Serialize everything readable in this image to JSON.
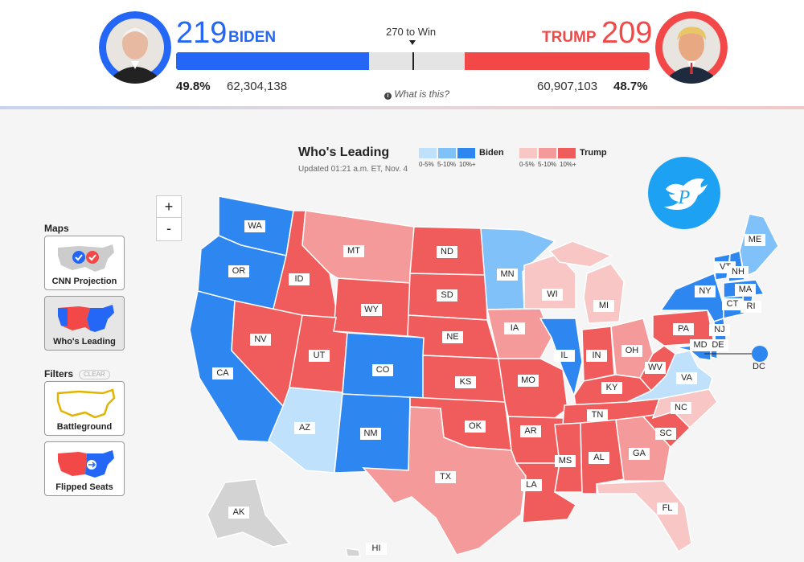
{
  "header": {
    "biden": {
      "electoral": "219",
      "name": "BIDEN",
      "pct": "49.8%",
      "votes": "62,304,138"
    },
    "trump": {
      "electoral": "209",
      "name": "TRUMP",
      "pct": "48.7%",
      "votes": "60,907,103"
    },
    "win_label": "270 to Win",
    "help_text": "What is this?",
    "help_icon": "info-icon",
    "colors": {
      "biden": "#2466f5",
      "trump": "#f24848",
      "neutral": "#e4e4e4"
    }
  },
  "zoom": {
    "in_label": "+",
    "out_label": "-"
  },
  "sidebar": {
    "maps_title": "Maps",
    "maps": [
      {
        "label": "CNN Projection",
        "icon": "us-map-checkmarks-icon"
      },
      {
        "label": "Who's Leading",
        "icon": "us-map-red-blue-icon"
      }
    ],
    "filters_title": "Filters",
    "clear_label": "CLEAR",
    "filters": [
      {
        "label": "Battleground",
        "icon": "us-outline-yellow-icon"
      },
      {
        "label": "Flipped Seats",
        "icon": "us-map-flip-icon"
      }
    ]
  },
  "legend": {
    "title": "Who's Leading",
    "updated": "Updated 01:21 a.m. ET, Nov. 4",
    "biden_label": "Biden",
    "trump_label": "Trump",
    "ranges": [
      "0-5%",
      "5-10%",
      "10%+"
    ],
    "biden_colors": [
      "#bfe1fb",
      "#7fc1f8",
      "#2e86f0"
    ],
    "trump_colors": [
      "#f9c6c6",
      "#f59a9a",
      "#f05c5c"
    ]
  },
  "watermark_icon": "twitter-bird-p-icon",
  "states": {
    "WA": "WA",
    "OR": "OR",
    "CA": "CA",
    "ID": "ID",
    "NV": "NV",
    "MT": "MT",
    "WY": "WY",
    "UT": "UT",
    "AZ": "AZ",
    "CO": "CO",
    "NM": "NM",
    "ND": "ND",
    "SD": "SD",
    "NE": "NE",
    "KS": "KS",
    "OK": "OK",
    "TX": "TX",
    "MN": "MN",
    "IA": "IA",
    "MO": "MO",
    "AR": "AR",
    "LA": "LA",
    "WI": "WI",
    "IL": "IL",
    "MS": "MS",
    "MI": "MI",
    "IN": "IN",
    "KY": "KY",
    "TN": "TN",
    "AL": "AL",
    "OH": "OH",
    "WV": "WV",
    "GA": "GA",
    "FL": "FL",
    "SC": "SC",
    "NC": "NC",
    "VA": "VA",
    "PA": "PA",
    "NY": "NY",
    "VT": "VT",
    "NH": "NH",
    "ME": "ME",
    "MA": "MA",
    "CT": "CT",
    "RI": "RI",
    "NJ": "NJ",
    "DE": "DE",
    "MD": "MD",
    "DC": "DC",
    "AK": "AK",
    "HI": "HI"
  }
}
